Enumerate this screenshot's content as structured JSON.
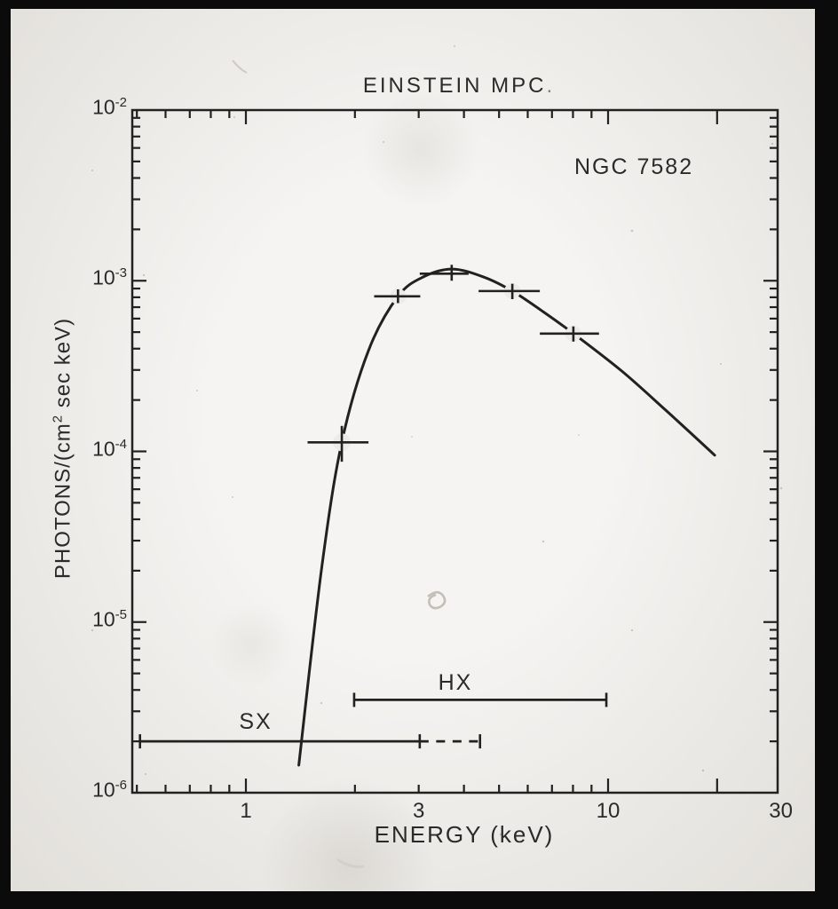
{
  "chart_data": {
    "type": "line",
    "title": "EINSTEIN MPC",
    "title_period": ".",
    "annotation": "NGC 7582",
    "xlabel": "ENERGY (keV)",
    "ylabel": "PHOTONS/(cm2 sec keV)",
    "ylabel_parts": [
      {
        "t": "PHOTONS/(cm"
      },
      {
        "t": "2",
        "sup": true
      },
      {
        "t": " sec keV)"
      }
    ],
    "x_scale": "log",
    "y_scale": "log",
    "xlim": [
      0.49,
      29.4
    ],
    "ylim": [
      1e-06,
      0.01
    ],
    "grid": false,
    "x_ticks_labeled": [
      {
        "value": 1,
        "label": "1"
      },
      {
        "value": 3,
        "label": "3"
      },
      {
        "value": 10,
        "label": "10"
      },
      {
        "value": 30,
        "label": "30"
      }
    ],
    "x_ticks_major": [
      1,
      10,
      20
    ],
    "x_ticks_minor": [
      0.5,
      0.6,
      0.7,
      0.8,
      0.9,
      2,
      3,
      4,
      5,
      6,
      7,
      8,
      9
    ],
    "y_ticks": [
      {
        "base": "10",
        "exp": -2
      },
      {
        "base": "10",
        "exp": -3
      },
      {
        "base": "10",
        "exp": -4
      },
      {
        "base": "10",
        "exp": -5
      },
      {
        "base": "10",
        "exp": -6
      }
    ],
    "series": [
      {
        "name": "model-curve",
        "type": "line",
        "points": [
          [
            1.4,
            1.45e-06
          ],
          [
            1.62,
            2.1e-05
          ],
          [
            1.84,
            0.000113
          ],
          [
            2.18,
            0.00039
          ],
          [
            2.63,
            0.00081
          ],
          [
            3.11,
            0.00106
          ],
          [
            3.72,
            0.00117
          ],
          [
            4.54,
            0.00105
          ],
          [
            5.44,
            0.00087
          ],
          [
            6.54,
            0.00067
          ],
          [
            8.03,
            0.00049
          ],
          [
            10.9,
            0.000296
          ],
          [
            14.4,
            0.000175
          ],
          [
            19.7,
            9.5e-05
          ]
        ]
      },
      {
        "name": "mpc-data-points",
        "type": "points-xyerr",
        "points": [
          {
            "E": 1.84,
            "Elo": 1.48,
            "Ehi": 2.18,
            "F": 0.000113,
            "Flo": 8.7e-05,
            "Fhi": 0.000141
          },
          {
            "E": 2.63,
            "Elo": 2.26,
            "Ehi": 3.03,
            "F": 0.00081,
            "Flo": 0.00074,
            "Fhi": 0.00089
          },
          {
            "E": 3.7,
            "Elo": 3.02,
            "Ehi": 4.12,
            "F": 0.0011,
            "Flo": 0.001,
            "Fhi": 0.00124
          },
          {
            "E": 5.44,
            "Elo": 4.39,
            "Ehi": 6.48,
            "F": 0.00087,
            "Flo": 0.00078,
            "Fhi": 0.00096
          },
          {
            "E": 8.02,
            "Elo": 6.48,
            "Ehi": 9.44,
            "F": 0.00049,
            "Flo": 0.00044,
            "Fhi": 0.00054
          }
        ]
      }
    ],
    "bands": [
      {
        "label": "SX",
        "flux": 2e-06,
        "solid": [
          0.51,
          3.02
        ],
        "dashed": [
          3.02,
          4.43
        ]
      },
      {
        "label": "HX",
        "flux": 3.5e-06,
        "solid": [
          1.99,
          9.89
        ],
        "dashed": null
      }
    ]
  }
}
